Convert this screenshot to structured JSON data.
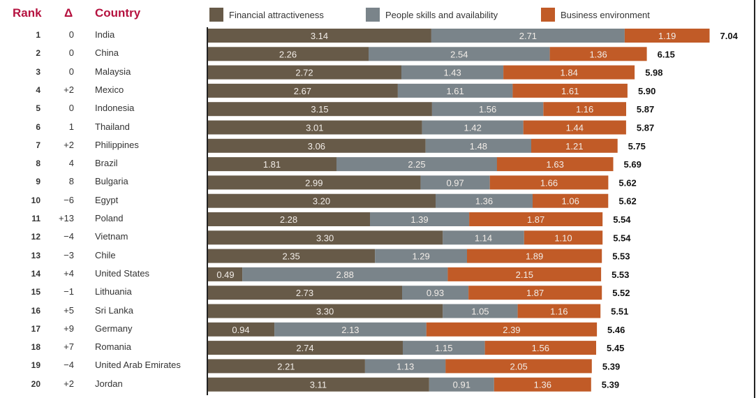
{
  "header": {
    "rank": "Rank",
    "delta": "Δ",
    "country": "Country"
  },
  "chart_data": {
    "type": "bar",
    "orientation": "horizontal",
    "stacked": true,
    "title": "",
    "xlabel": "",
    "ylabel": "",
    "xlim": [
      0,
      7.6
    ],
    "grid": false,
    "legend_position": "top",
    "colors": {
      "Financial attractiveness": "#675a48",
      "People skills and availability": "#7a848a",
      "Business environment": "#c15b27"
    },
    "series": [
      {
        "name": "Financial attractiveness",
        "values": [
          3.14,
          2.26,
          2.72,
          2.67,
          3.15,
          3.01,
          3.06,
          1.81,
          2.99,
          3.2,
          2.28,
          3.3,
          2.35,
          0.49,
          2.73,
          3.3,
          0.94,
          2.74,
          2.21,
          3.11
        ]
      },
      {
        "name": "People skills and availability",
        "values": [
          2.71,
          2.54,
          1.43,
          1.61,
          1.56,
          1.42,
          1.48,
          2.25,
          0.97,
          1.36,
          1.39,
          1.14,
          1.29,
          2.88,
          0.93,
          1.05,
          2.13,
          1.15,
          1.13,
          0.91
        ]
      },
      {
        "name": "Business environment",
        "values": [
          1.19,
          1.36,
          1.84,
          1.61,
          1.16,
          1.44,
          1.21,
          1.63,
          1.66,
          1.06,
          1.87,
          1.1,
          1.89,
          2.15,
          1.87,
          1.16,
          2.39,
          1.56,
          2.05,
          1.36
        ]
      }
    ],
    "categories": [
      "India",
      "China",
      "Malaysia",
      "Mexico",
      "Indonesia",
      "Thailand",
      "Philippines",
      "Brazil",
      "Bulgaria",
      "Egypt",
      "Poland",
      "Vietnam",
      "Chile",
      "United States",
      "Lithuania",
      "Sri Lanka",
      "Germany",
      "Romania",
      "United Arab Emirates",
      "Jordan"
    ],
    "totals": [
      "7.04",
      "6.15",
      "5.98",
      "5.90",
      "5.87",
      "5.87",
      "5.75",
      "5.69",
      "5.62",
      "5.62",
      "5.54",
      "5.54",
      "5.53",
      "5.53",
      "5.52",
      "5.51",
      "5.46",
      "5.45",
      "5.39",
      "5.39"
    ],
    "ranks": [
      "1",
      "2",
      "3",
      "4",
      "5",
      "6",
      "7",
      "8",
      "9",
      "10",
      "11",
      "12",
      "13",
      "14",
      "15",
      "16",
      "17",
      "18",
      "19",
      "20"
    ],
    "deltas": [
      "0",
      "0",
      "0",
      "+2",
      "0",
      "1",
      "+2",
      "4",
      "8",
      "−6",
      "+13",
      "−4",
      "−3",
      "+4",
      "−1",
      "+5",
      "+9",
      "+7",
      "−4",
      "+2"
    ]
  }
}
